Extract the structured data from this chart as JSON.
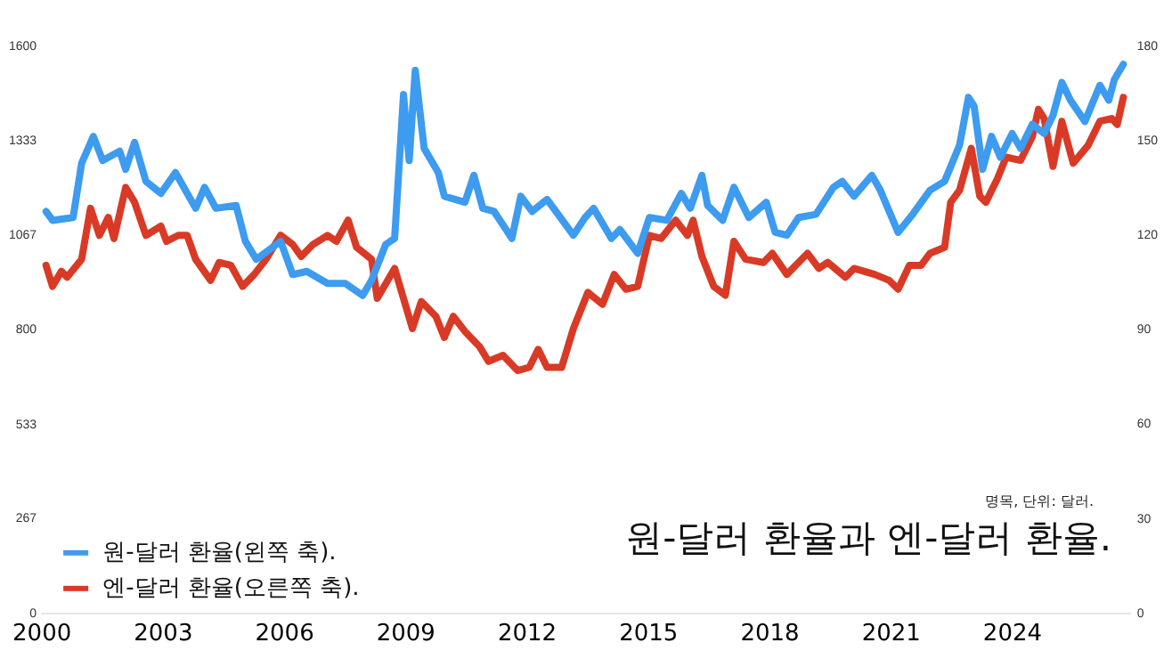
{
  "chart_data": {
    "type": "line",
    "title": "원-달러 환율과 엔-달러 환율.",
    "annotations": [
      "명목, 단위: 달러."
    ],
    "xlim": [
      2000,
      2026.9
    ],
    "xticks": [
      2000,
      2003,
      2006,
      2009,
      2012,
      2015,
      2018,
      2021,
      2024
    ],
    "ylim": [
      0,
      1600
    ],
    "yticks": [
      0,
      267,
      533,
      800,
      1067,
      1333,
      1600
    ],
    "y2lim": [
      0,
      180
    ],
    "y2ticks": [
      0,
      30,
      60,
      90,
      120,
      150,
      180
    ],
    "grid": false,
    "legend": "bottom left",
    "marker": "none",
    "line_style": "solid",
    "series": [
      {
        "name": "원-달러 환율(왼쪽 축).",
        "color": "#3d9bf0",
        "x": [
          2000.1,
          2000.26,
          2000.77,
          2000.98,
          2001.27,
          2001.5,
          2001.92,
          2002.07,
          2002.29,
          2002.57,
          2002.94,
          2003.3,
          2003.8,
          2004.02,
          2004.3,
          2004.8,
          2005.03,
          2005.3,
          2005.9,
          2006.2,
          2006.55,
          2007.06,
          2007.5,
          2007.93,
          2008.15,
          2008.5,
          2008.72,
          2008.94,
          2009.08,
          2009.23,
          2009.45,
          2009.8,
          2009.95,
          2010.46,
          2010.68,
          2010.9,
          2011.18,
          2011.62,
          2011.84,
          2012.12,
          2012.49,
          2013.14,
          2013.43,
          2013.64,
          2014.08,
          2014.29,
          2014.73,
          2015.02,
          2015.45,
          2015.81,
          2016.03,
          2016.32,
          2016.46,
          2016.83,
          2017.11,
          2017.48,
          2017.91,
          2018.13,
          2018.42,
          2018.71,
          2019.14,
          2019.57,
          2019.79,
          2020.08,
          2020.52,
          2020.73,
          2021.17,
          2021.53,
          2021.96,
          2022.32,
          2022.69,
          2022.91,
          2023.05,
          2023.26,
          2023.48,
          2023.7,
          2023.99,
          2024.2,
          2024.49,
          2024.78,
          2025.0,
          2025.22,
          2025.43,
          2025.79,
          2026.16,
          2026.38,
          2026.52,
          2026.74
        ],
        "values": [
          1134,
          1109,
          1117,
          1270,
          1346,
          1278,
          1304,
          1253,
          1329,
          1219,
          1185,
          1244,
          1143,
          1202,
          1143,
          1151,
          1050,
          999,
          1050,
          956,
          965,
          931,
          931,
          897,
          940,
          1041,
          1058,
          1464,
          1278,
          1532,
          1312,
          1244,
          1177,
          1160,
          1236,
          1143,
          1134,
          1058,
          1177,
          1134,
          1168,
          1067,
          1117,
          1143,
          1058,
          1083,
          1016,
          1117,
          1109,
          1185,
          1143,
          1236,
          1151,
          1109,
          1202,
          1117,
          1160,
          1075,
          1067,
          1117,
          1126,
          1202,
          1219,
          1177,
          1236,
          1194,
          1075,
          1126,
          1194,
          1219,
          1321,
          1456,
          1431,
          1253,
          1346,
          1287,
          1354,
          1312,
          1380,
          1354,
          1405,
          1498,
          1448,
          1388,
          1490,
          1448,
          1507,
          1549
        ]
      },
      {
        "name": "엔-달러 환율(오른쪽 축).",
        "color": "#d93a26",
        "axis": "y2",
        "x": [
          2000.1,
          2000.26,
          2000.48,
          2000.62,
          2000.98,
          2001.2,
          2001.42,
          2001.64,
          2001.78,
          2002.07,
          2002.29,
          2002.57,
          2002.94,
          2003.08,
          2003.37,
          2003.59,
          2003.8,
          2004.17,
          2004.38,
          2004.67,
          2004.96,
          2005.25,
          2005.54,
          2005.9,
          2006.2,
          2006.41,
          2006.7,
          2007.06,
          2007.28,
          2007.57,
          2007.78,
          2008.15,
          2008.29,
          2008.72,
          2009.16,
          2009.38,
          2009.74,
          2009.95,
          2010.17,
          2010.46,
          2010.82,
          2011.04,
          2011.4,
          2011.76,
          2012.05,
          2012.27,
          2012.49,
          2012.85,
          2013.14,
          2013.5,
          2013.86,
          2014.15,
          2014.44,
          2014.73,
          2015.02,
          2015.31,
          2015.67,
          2015.96,
          2016.1,
          2016.32,
          2016.61,
          2016.9,
          2017.11,
          2017.4,
          2017.84,
          2018.06,
          2018.42,
          2018.93,
          2019.21,
          2019.43,
          2019.87,
          2020.08,
          2020.59,
          2020.95,
          2021.17,
          2021.45,
          2021.74,
          2021.96,
          2022.32,
          2022.47,
          2022.69,
          2022.98,
          2023.19,
          2023.34,
          2023.63,
          2023.84,
          2024.2,
          2024.49,
          2024.64,
          2024.78,
          2025.0,
          2025.22,
          2025.5,
          2025.87,
          2026.16,
          2026.45,
          2026.59,
          2026.74
        ],
        "values": [
          110.5,
          103.8,
          108.6,
          106.7,
          112.4,
          128.6,
          120,
          125.7,
          119,
          135.2,
          130.5,
          120,
          122.9,
          118.1,
          120,
          120,
          112.4,
          105.7,
          111.4,
          110.5,
          103.8,
          107.6,
          112.4,
          120,
          117.1,
          113.3,
          117.1,
          120,
          118.1,
          124.8,
          116.2,
          112.4,
          100,
          109.5,
          90.4,
          99,
          94.3,
          87.6,
          94.3,
          89.5,
          84.7,
          80,
          81.9,
          77.1,
          78.1,
          83.8,
          78.1,
          78.1,
          90.4,
          101.9,
          98.1,
          107.6,
          102.9,
          103.8,
          120,
          119,
          124.8,
          120,
          124.8,
          113.3,
          103.8,
          101,
          118.1,
          112.4,
          111.4,
          114.3,
          107.6,
          114.3,
          109.5,
          111.4,
          106.7,
          109.5,
          107.6,
          105.7,
          102.9,
          110.5,
          110.5,
          114.3,
          116.2,
          130.5,
          134.3,
          147.6,
          132.4,
          130.5,
          138.1,
          144.8,
          143.8,
          151.4,
          160,
          157.1,
          141.9,
          156.2,
          142.9,
          148.6,
          156.2,
          157.1,
          155.2,
          163.8
        ]
      }
    ]
  }
}
